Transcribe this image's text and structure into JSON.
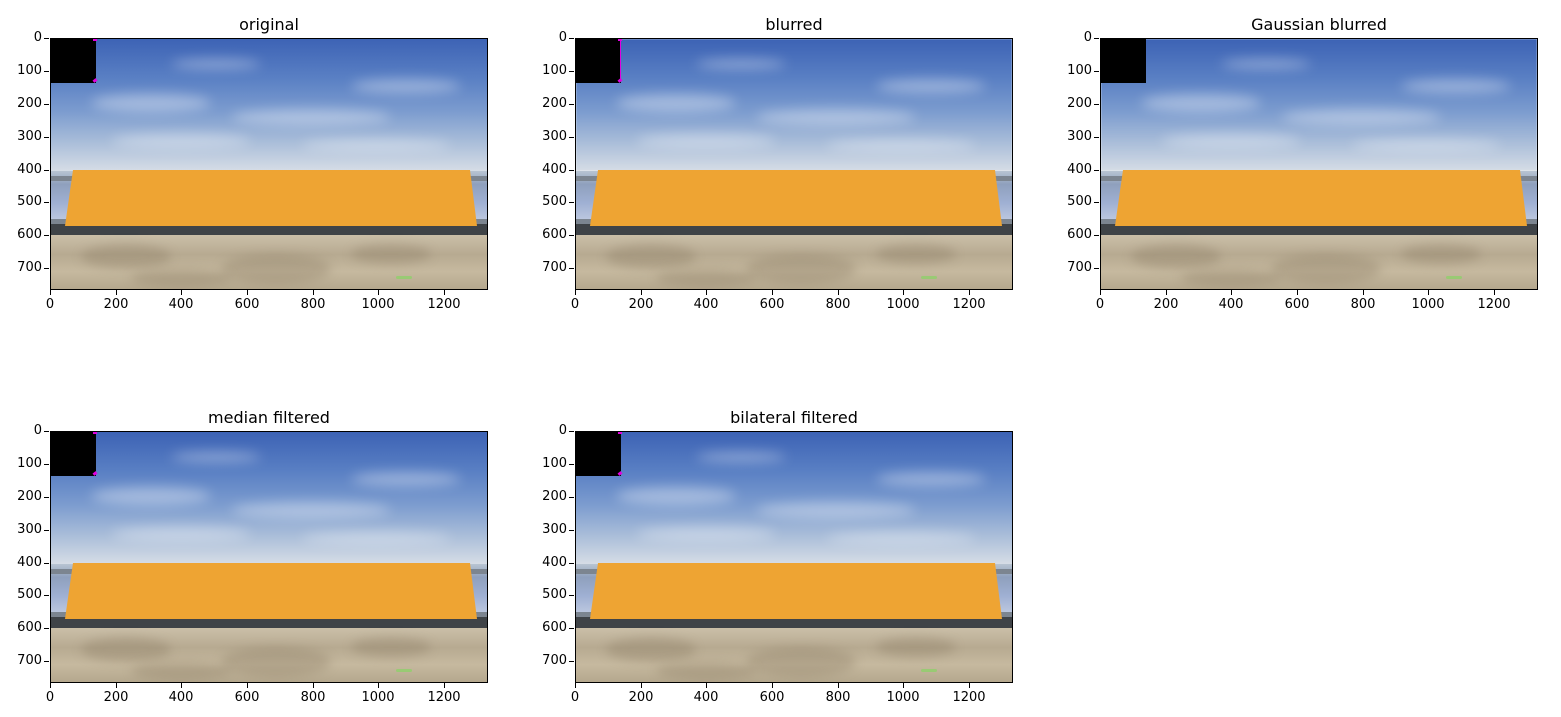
{
  "panels": [
    {
      "title": "original"
    },
    {
      "title": "blurred"
    },
    {
      "title": "Gaussian blurred"
    },
    {
      "title": "median filtered"
    },
    {
      "title": "bilateral filtered"
    }
  ],
  "yticks": [
    "0",
    "100",
    "200",
    "300",
    "400",
    "500",
    "600",
    "700"
  ],
  "xticks": [
    "0",
    "200",
    "400",
    "600",
    "800",
    "1000",
    "1200"
  ],
  "colors": {
    "block": "#eea433",
    "road": "#3f4347",
    "sky_top": "#3d63b5",
    "marker": "#e000e0"
  }
}
